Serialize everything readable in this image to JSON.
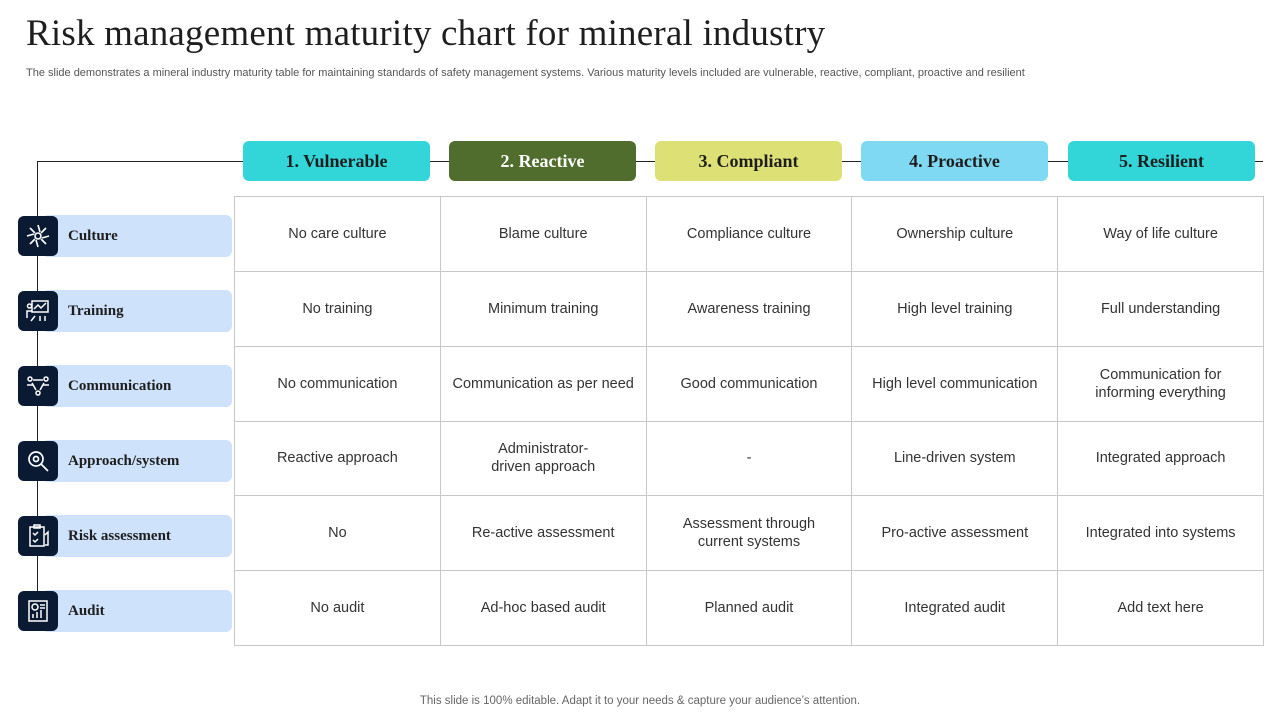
{
  "title": "Risk management maturity chart for mineral industry",
  "subtitle": "The slide demonstrates a mineral industry maturity table for maintaining standards of safety management systems. Various maturity levels included are vulnerable, reactive, compliant, proactive and resilient",
  "footer": "This slide is 100% editable. Adapt it to your needs & capture your audience’s attention.",
  "colors": {
    "vulnerable": "#32d6d9",
    "reactive": "#516d2e",
    "compliant": "#dde074",
    "proactive": "#7fd9f2",
    "resilient": "#32d6d9",
    "row_label_bg": "#cfe2fb",
    "icon_bg": "#0b1a33"
  },
  "levels": [
    {
      "label": "1. Vulnerable"
    },
    {
      "label": "2. Reactive"
    },
    {
      "label": "3. Compliant"
    },
    {
      "label": "4. Proactive"
    },
    {
      "label": "5. Resilient"
    }
  ],
  "rows": [
    {
      "label": "Culture",
      "icon": "flower-burst-icon",
      "cells": [
        "No care culture",
        "Blame culture",
        "Compliance culture",
        "Ownership culture",
        "Way of life culture"
      ]
    },
    {
      "label": "Training",
      "icon": "presentation-board-icon",
      "cells": [
        "No training",
        "Minimum training",
        "Awareness training",
        "High level training",
        "Full understanding"
      ]
    },
    {
      "label": "Communication",
      "icon": "people-network-icon",
      "cells": [
        "No communication",
        "Communication as per need",
        "Good communication",
        "High level communication",
        "Communication for\ninforming everything"
      ]
    },
    {
      "label": "Approach/system",
      "icon": "magnifier-gear-icon",
      "cells": [
        "Reactive approach",
        "Administrator-\ndriven approach",
        "-",
        "Line-driven system",
        "Integrated approach"
      ]
    },
    {
      "label": "Risk assessment",
      "icon": "clipboard-check-icon",
      "cells": [
        "No",
        "Re-active assessment",
        "Assessment through\ncurrent systems",
        "Pro-active assessment",
        "Integrated into systems"
      ]
    },
    {
      "label": "Audit",
      "icon": "report-chart-icon",
      "cells": [
        "No audit",
        "Ad-hoc based audit",
        "Planned audit",
        "Integrated audit",
        "Add text here"
      ]
    }
  ]
}
